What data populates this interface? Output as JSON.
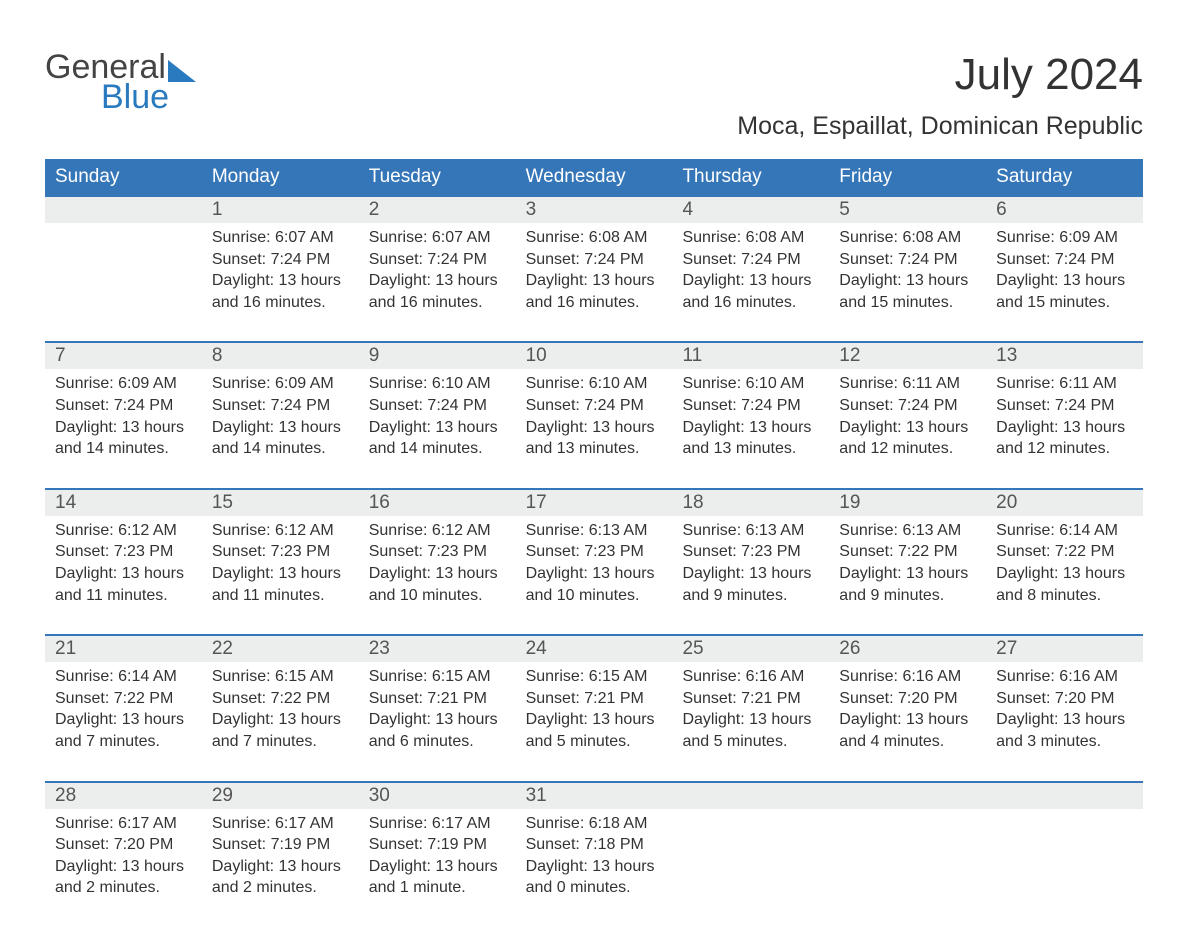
{
  "logo": {
    "word1": "General",
    "word2": "Blue"
  },
  "title": "July 2024",
  "subtitle": "Moca, Espaillat, Dominican Republic",
  "colors": {
    "header_bg": "#3576b8",
    "header_text": "#ffffff",
    "daynum_bg": "#eceded",
    "week_border": "#3576b8",
    "logo_blue": "#2a7ac0",
    "body_text": "#333333",
    "background": "#ffffff"
  },
  "fonts": {
    "title_size_pt": 33,
    "subtitle_size_pt": 19,
    "header_size_pt": 14,
    "body_size_pt": 12
  },
  "day_names": [
    "Sunday",
    "Monday",
    "Tuesday",
    "Wednesday",
    "Thursday",
    "Friday",
    "Saturday"
  ],
  "weeks": [
    {
      "days": [
        {
          "num": "",
          "sunrise": "",
          "sunset": "",
          "daylight": ""
        },
        {
          "num": "1",
          "sunrise": "Sunrise: 6:07 AM",
          "sunset": "Sunset: 7:24 PM",
          "daylight": "Daylight: 13 hours and 16 minutes."
        },
        {
          "num": "2",
          "sunrise": "Sunrise: 6:07 AM",
          "sunset": "Sunset: 7:24 PM",
          "daylight": "Daylight: 13 hours and 16 minutes."
        },
        {
          "num": "3",
          "sunrise": "Sunrise: 6:08 AM",
          "sunset": "Sunset: 7:24 PM",
          "daylight": "Daylight: 13 hours and 16 minutes."
        },
        {
          "num": "4",
          "sunrise": "Sunrise: 6:08 AM",
          "sunset": "Sunset: 7:24 PM",
          "daylight": "Daylight: 13 hours and 16 minutes."
        },
        {
          "num": "5",
          "sunrise": "Sunrise: 6:08 AM",
          "sunset": "Sunset: 7:24 PM",
          "daylight": "Daylight: 13 hours and 15 minutes."
        },
        {
          "num": "6",
          "sunrise": "Sunrise: 6:09 AM",
          "sunset": "Sunset: 7:24 PM",
          "daylight": "Daylight: 13 hours and 15 minutes."
        }
      ]
    },
    {
      "days": [
        {
          "num": "7",
          "sunrise": "Sunrise: 6:09 AM",
          "sunset": "Sunset: 7:24 PM",
          "daylight": "Daylight: 13 hours and 14 minutes."
        },
        {
          "num": "8",
          "sunrise": "Sunrise: 6:09 AM",
          "sunset": "Sunset: 7:24 PM",
          "daylight": "Daylight: 13 hours and 14 minutes."
        },
        {
          "num": "9",
          "sunrise": "Sunrise: 6:10 AM",
          "sunset": "Sunset: 7:24 PM",
          "daylight": "Daylight: 13 hours and 14 minutes."
        },
        {
          "num": "10",
          "sunrise": "Sunrise: 6:10 AM",
          "sunset": "Sunset: 7:24 PM",
          "daylight": "Daylight: 13 hours and 13 minutes."
        },
        {
          "num": "11",
          "sunrise": "Sunrise: 6:10 AM",
          "sunset": "Sunset: 7:24 PM",
          "daylight": "Daylight: 13 hours and 13 minutes."
        },
        {
          "num": "12",
          "sunrise": "Sunrise: 6:11 AM",
          "sunset": "Sunset: 7:24 PM",
          "daylight": "Daylight: 13 hours and 12 minutes."
        },
        {
          "num": "13",
          "sunrise": "Sunrise: 6:11 AM",
          "sunset": "Sunset: 7:24 PM",
          "daylight": "Daylight: 13 hours and 12 minutes."
        }
      ]
    },
    {
      "days": [
        {
          "num": "14",
          "sunrise": "Sunrise: 6:12 AM",
          "sunset": "Sunset: 7:23 PM",
          "daylight": "Daylight: 13 hours and 11 minutes."
        },
        {
          "num": "15",
          "sunrise": "Sunrise: 6:12 AM",
          "sunset": "Sunset: 7:23 PM",
          "daylight": "Daylight: 13 hours and 11 minutes."
        },
        {
          "num": "16",
          "sunrise": "Sunrise: 6:12 AM",
          "sunset": "Sunset: 7:23 PM",
          "daylight": "Daylight: 13 hours and 10 minutes."
        },
        {
          "num": "17",
          "sunrise": "Sunrise: 6:13 AM",
          "sunset": "Sunset: 7:23 PM",
          "daylight": "Daylight: 13 hours and 10 minutes."
        },
        {
          "num": "18",
          "sunrise": "Sunrise: 6:13 AM",
          "sunset": "Sunset: 7:23 PM",
          "daylight": "Daylight: 13 hours and 9 minutes."
        },
        {
          "num": "19",
          "sunrise": "Sunrise: 6:13 AM",
          "sunset": "Sunset: 7:22 PM",
          "daylight": "Daylight: 13 hours and 9 minutes."
        },
        {
          "num": "20",
          "sunrise": "Sunrise: 6:14 AM",
          "sunset": "Sunset: 7:22 PM",
          "daylight": "Daylight: 13 hours and 8 minutes."
        }
      ]
    },
    {
      "days": [
        {
          "num": "21",
          "sunrise": "Sunrise: 6:14 AM",
          "sunset": "Sunset: 7:22 PM",
          "daylight": "Daylight: 13 hours and 7 minutes."
        },
        {
          "num": "22",
          "sunrise": "Sunrise: 6:15 AM",
          "sunset": "Sunset: 7:22 PM",
          "daylight": "Daylight: 13 hours and 7 minutes."
        },
        {
          "num": "23",
          "sunrise": "Sunrise: 6:15 AM",
          "sunset": "Sunset: 7:21 PM",
          "daylight": "Daylight: 13 hours and 6 minutes."
        },
        {
          "num": "24",
          "sunrise": "Sunrise: 6:15 AM",
          "sunset": "Sunset: 7:21 PM",
          "daylight": "Daylight: 13 hours and 5 minutes."
        },
        {
          "num": "25",
          "sunrise": "Sunrise: 6:16 AM",
          "sunset": "Sunset: 7:21 PM",
          "daylight": "Daylight: 13 hours and 5 minutes."
        },
        {
          "num": "26",
          "sunrise": "Sunrise: 6:16 AM",
          "sunset": "Sunset: 7:20 PM",
          "daylight": "Daylight: 13 hours and 4 minutes."
        },
        {
          "num": "27",
          "sunrise": "Sunrise: 6:16 AM",
          "sunset": "Sunset: 7:20 PM",
          "daylight": "Daylight: 13 hours and 3 minutes."
        }
      ]
    },
    {
      "days": [
        {
          "num": "28",
          "sunrise": "Sunrise: 6:17 AM",
          "sunset": "Sunset: 7:20 PM",
          "daylight": "Daylight: 13 hours and 2 minutes."
        },
        {
          "num": "29",
          "sunrise": "Sunrise: 6:17 AM",
          "sunset": "Sunset: 7:19 PM",
          "daylight": "Daylight: 13 hours and 2 minutes."
        },
        {
          "num": "30",
          "sunrise": "Sunrise: 6:17 AM",
          "sunset": "Sunset: 7:19 PM",
          "daylight": "Daylight: 13 hours and 1 minute."
        },
        {
          "num": "31",
          "sunrise": "Sunrise: 6:18 AM",
          "sunset": "Sunset: 7:18 PM",
          "daylight": "Daylight: 13 hours and 0 minutes."
        },
        {
          "num": "",
          "sunrise": "",
          "sunset": "",
          "daylight": ""
        },
        {
          "num": "",
          "sunrise": "",
          "sunset": "",
          "daylight": ""
        },
        {
          "num": "",
          "sunrise": "",
          "sunset": "",
          "daylight": ""
        }
      ]
    }
  ]
}
